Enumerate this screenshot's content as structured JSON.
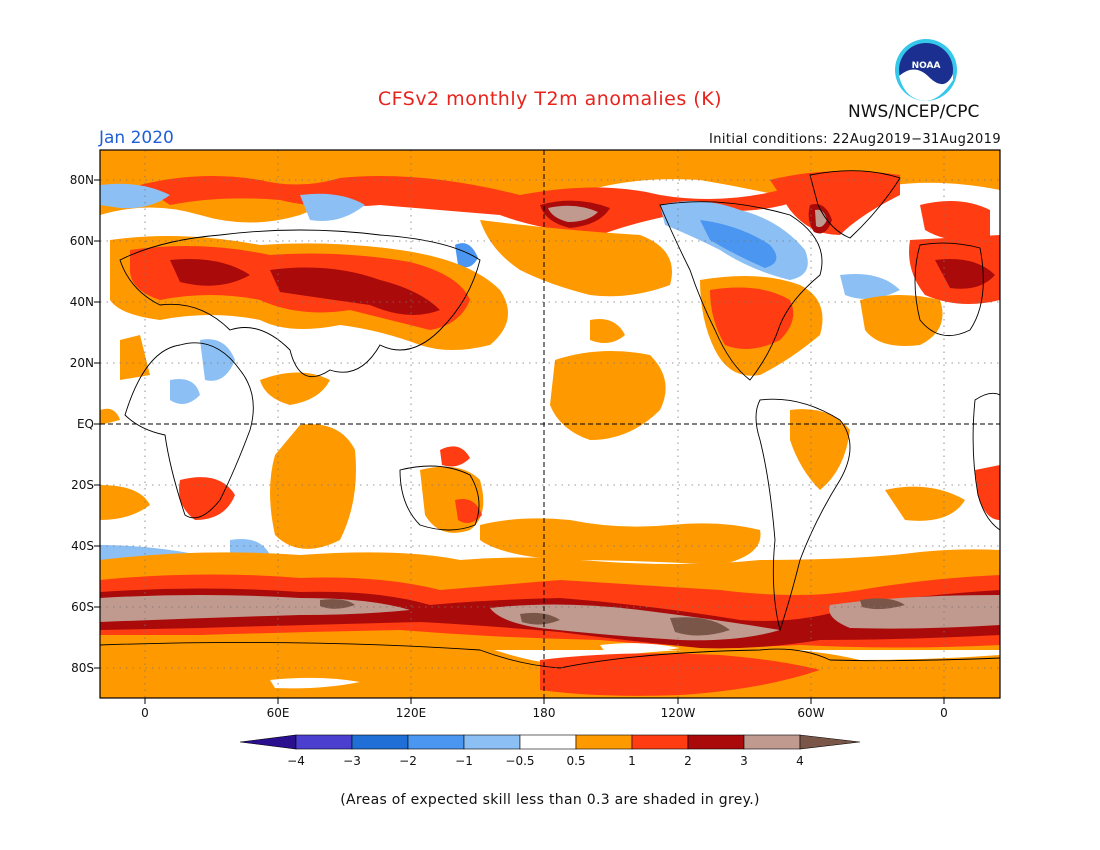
{
  "title": "CFSv2 monthly T2m anomalies (K)",
  "org": "NWS/NCEP/CPC",
  "logo_text": "NOAA",
  "month": "Jan 2020",
  "initial_conditions": "Initial conditions: 22Aug2019−31Aug2019",
  "lat_labels": [
    "80N",
    "60N",
    "40N",
    "20N",
    "EQ",
    "20S",
    "40S",
    "60S",
    "80S"
  ],
  "lon_labels": [
    "0",
    "60E",
    "120E",
    "180",
    "120W",
    "60W",
    "0"
  ],
  "colorbar": {
    "labels": [
      "−4",
      "−3",
      "−2",
      "−1",
      "−0.5",
      "0.5",
      "1",
      "2",
      "3",
      "4"
    ],
    "colors": [
      "#2a0f8f",
      "#4b3fcf",
      "#1f6fd6",
      "#4a96f0",
      "#8cc0f4",
      "#ffffff",
      "#ff9900",
      "#ff3c12",
      "#aa0a0a",
      "#c09a8e",
      "#7a5648"
    ]
  },
  "colors": {
    "title": "#e8231c",
    "month": "#1f5fd6",
    "neutral": "#ffffff",
    "warm1": "#ff9900",
    "warm2": "#ff3c12",
    "warm3": "#aa0a0a",
    "warm4": "#c09a8e",
    "warm5": "#7a5648",
    "cool1": "#8cc0f4",
    "cool2": "#4a96f0"
  },
  "note": "(Areas of expected skill less than 0.3 are shaded in grey.)"
}
